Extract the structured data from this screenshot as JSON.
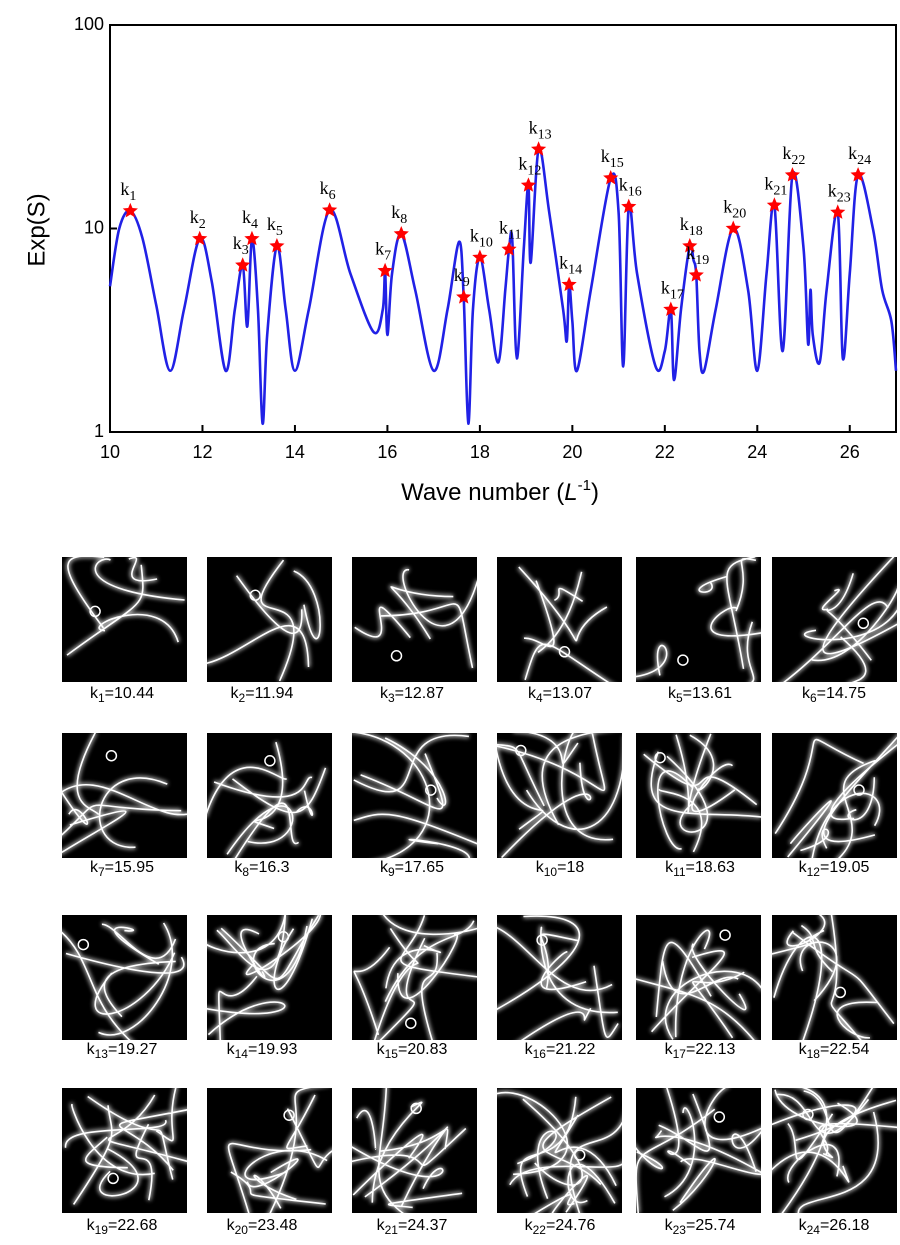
{
  "chart_data": {
    "type": "line",
    "ylabel": "Exp(S)",
    "xlabel": {
      "text": "Wave number (",
      "var": "L",
      "sup": "-1",
      "close": ")"
    },
    "xlim": [
      10,
      27
    ],
    "ylim": [
      1,
      100
    ],
    "log_y": true,
    "xticks": [
      10,
      12,
      14,
      16,
      18,
      20,
      22,
      24,
      26
    ],
    "yticks": [
      1,
      10,
      100
    ],
    "series": [
      {
        "color": "#2121e6",
        "x": [
          10.0,
          10.2,
          10.44,
          10.7,
          11.0,
          11.3,
          11.6,
          11.94,
          12.2,
          12.5,
          12.7,
          12.87,
          12.97,
          13.07,
          13.2,
          13.3,
          13.4,
          13.61,
          13.8,
          14.0,
          14.3,
          14.75,
          15.2,
          15.7,
          15.9,
          15.95,
          16.0,
          16.1,
          16.3,
          16.6,
          17.0,
          17.3,
          17.55,
          17.65,
          17.75,
          17.85,
          18.0,
          18.2,
          18.4,
          18.55,
          18.63,
          18.7,
          18.8,
          18.95,
          19.05,
          19.1,
          19.27,
          19.5,
          19.8,
          19.88,
          19.93,
          20.0,
          20.1,
          20.4,
          20.83,
          21.0,
          21.1,
          21.22,
          21.4,
          21.8,
          22.0,
          22.13,
          22.2,
          22.35,
          22.54,
          22.62,
          22.68,
          22.75,
          22.85,
          23.1,
          23.48,
          23.8,
          24.0,
          24.2,
          24.37,
          24.55,
          24.76,
          25.0,
          25.1,
          25.15,
          25.2,
          25.35,
          25.5,
          25.74,
          25.85,
          26.0,
          26.18,
          26.5,
          26.7,
          26.9,
          27.0
        ],
        "values": [
          5.2,
          10,
          12.2,
          9,
          4.2,
          2.0,
          4,
          8.9,
          5.5,
          2.0,
          4,
          6.6,
          3.3,
          8.9,
          4,
          1.1,
          3,
          8.2,
          4,
          2.0,
          4,
          12.3,
          6,
          3.1,
          4,
          6.2,
          3.0,
          6,
          9.4,
          5,
          2.0,
          4,
          8.6,
          4.6,
          1.1,
          4,
          7.2,
          4,
          2.2,
          5,
          7.9,
          8.8,
          2.3,
          8,
          16.3,
          6.8,
          24.5,
          12,
          4,
          2.8,
          5.3,
          3.5,
          2.0,
          5,
          17.7,
          12,
          2.1,
          12.8,
          6,
          2.1,
          2.5,
          4.0,
          1.8,
          4,
          8.2,
          7,
          5.9,
          2.5,
          2.0,
          4,
          10,
          5,
          2.0,
          6,
          13,
          2.5,
          18.3,
          8,
          2.7,
          5,
          3,
          2.2,
          5,
          12,
          2.3,
          6,
          18.3,
          10,
          5,
          3.5,
          2.0
        ]
      }
    ],
    "markers": {
      "color": "#ff0000",
      "x": [
        10.44,
        11.94,
        12.87,
        13.07,
        13.61,
        14.75,
        15.95,
        16.3,
        17.65,
        18,
        18.63,
        19.05,
        19.27,
        19.93,
        20.83,
        21.22,
        22.13,
        22.54,
        22.68,
        23.48,
        24.37,
        24.76,
        25.74,
        26.18
      ],
      "values": [
        12.2,
        8.9,
        6.6,
        8.9,
        8.2,
        12.3,
        6.2,
        9.4,
        4.6,
        7.2,
        7.9,
        16.3,
        24.5,
        5.3,
        17.7,
        12.8,
        4.0,
        8.2,
        5.9,
        10,
        13,
        18.3,
        12,
        18.3
      ],
      "labels": [
        {
          "text": "k",
          "sub": "1"
        },
        {
          "text": "k",
          "sub": "2"
        },
        {
          "text": "k",
          "sub": "3"
        },
        {
          "text": "k",
          "sub": "4"
        },
        {
          "text": "k",
          "sub": "5"
        },
        {
          "text": "k",
          "sub": "6"
        },
        {
          "text": "k",
          "sub": "7"
        },
        {
          "text": "k",
          "sub": "8"
        },
        {
          "text": "k",
          "sub": "9"
        },
        {
          "text": "k",
          "sub": "10"
        },
        {
          "text": "k",
          "sub": "11"
        },
        {
          "text": "k",
          "sub": "12"
        },
        {
          "text": "k",
          "sub": "13"
        },
        {
          "text": "k",
          "sub": "14"
        },
        {
          "text": "k",
          "sub": "15"
        },
        {
          "text": "k",
          "sub": "16"
        },
        {
          "text": "k",
          "sub": "17"
        },
        {
          "text": "k",
          "sub": "18"
        },
        {
          "text": "k",
          "sub": "19"
        },
        {
          "text": "k",
          "sub": "20"
        },
        {
          "text": "k",
          "sub": "21"
        },
        {
          "text": "k",
          "sub": "22"
        },
        {
          "text": "k",
          "sub": "23"
        },
        {
          "text": "k",
          "sub": "24"
        }
      ]
    }
  },
  "panels": {
    "separator": "="
  }
}
